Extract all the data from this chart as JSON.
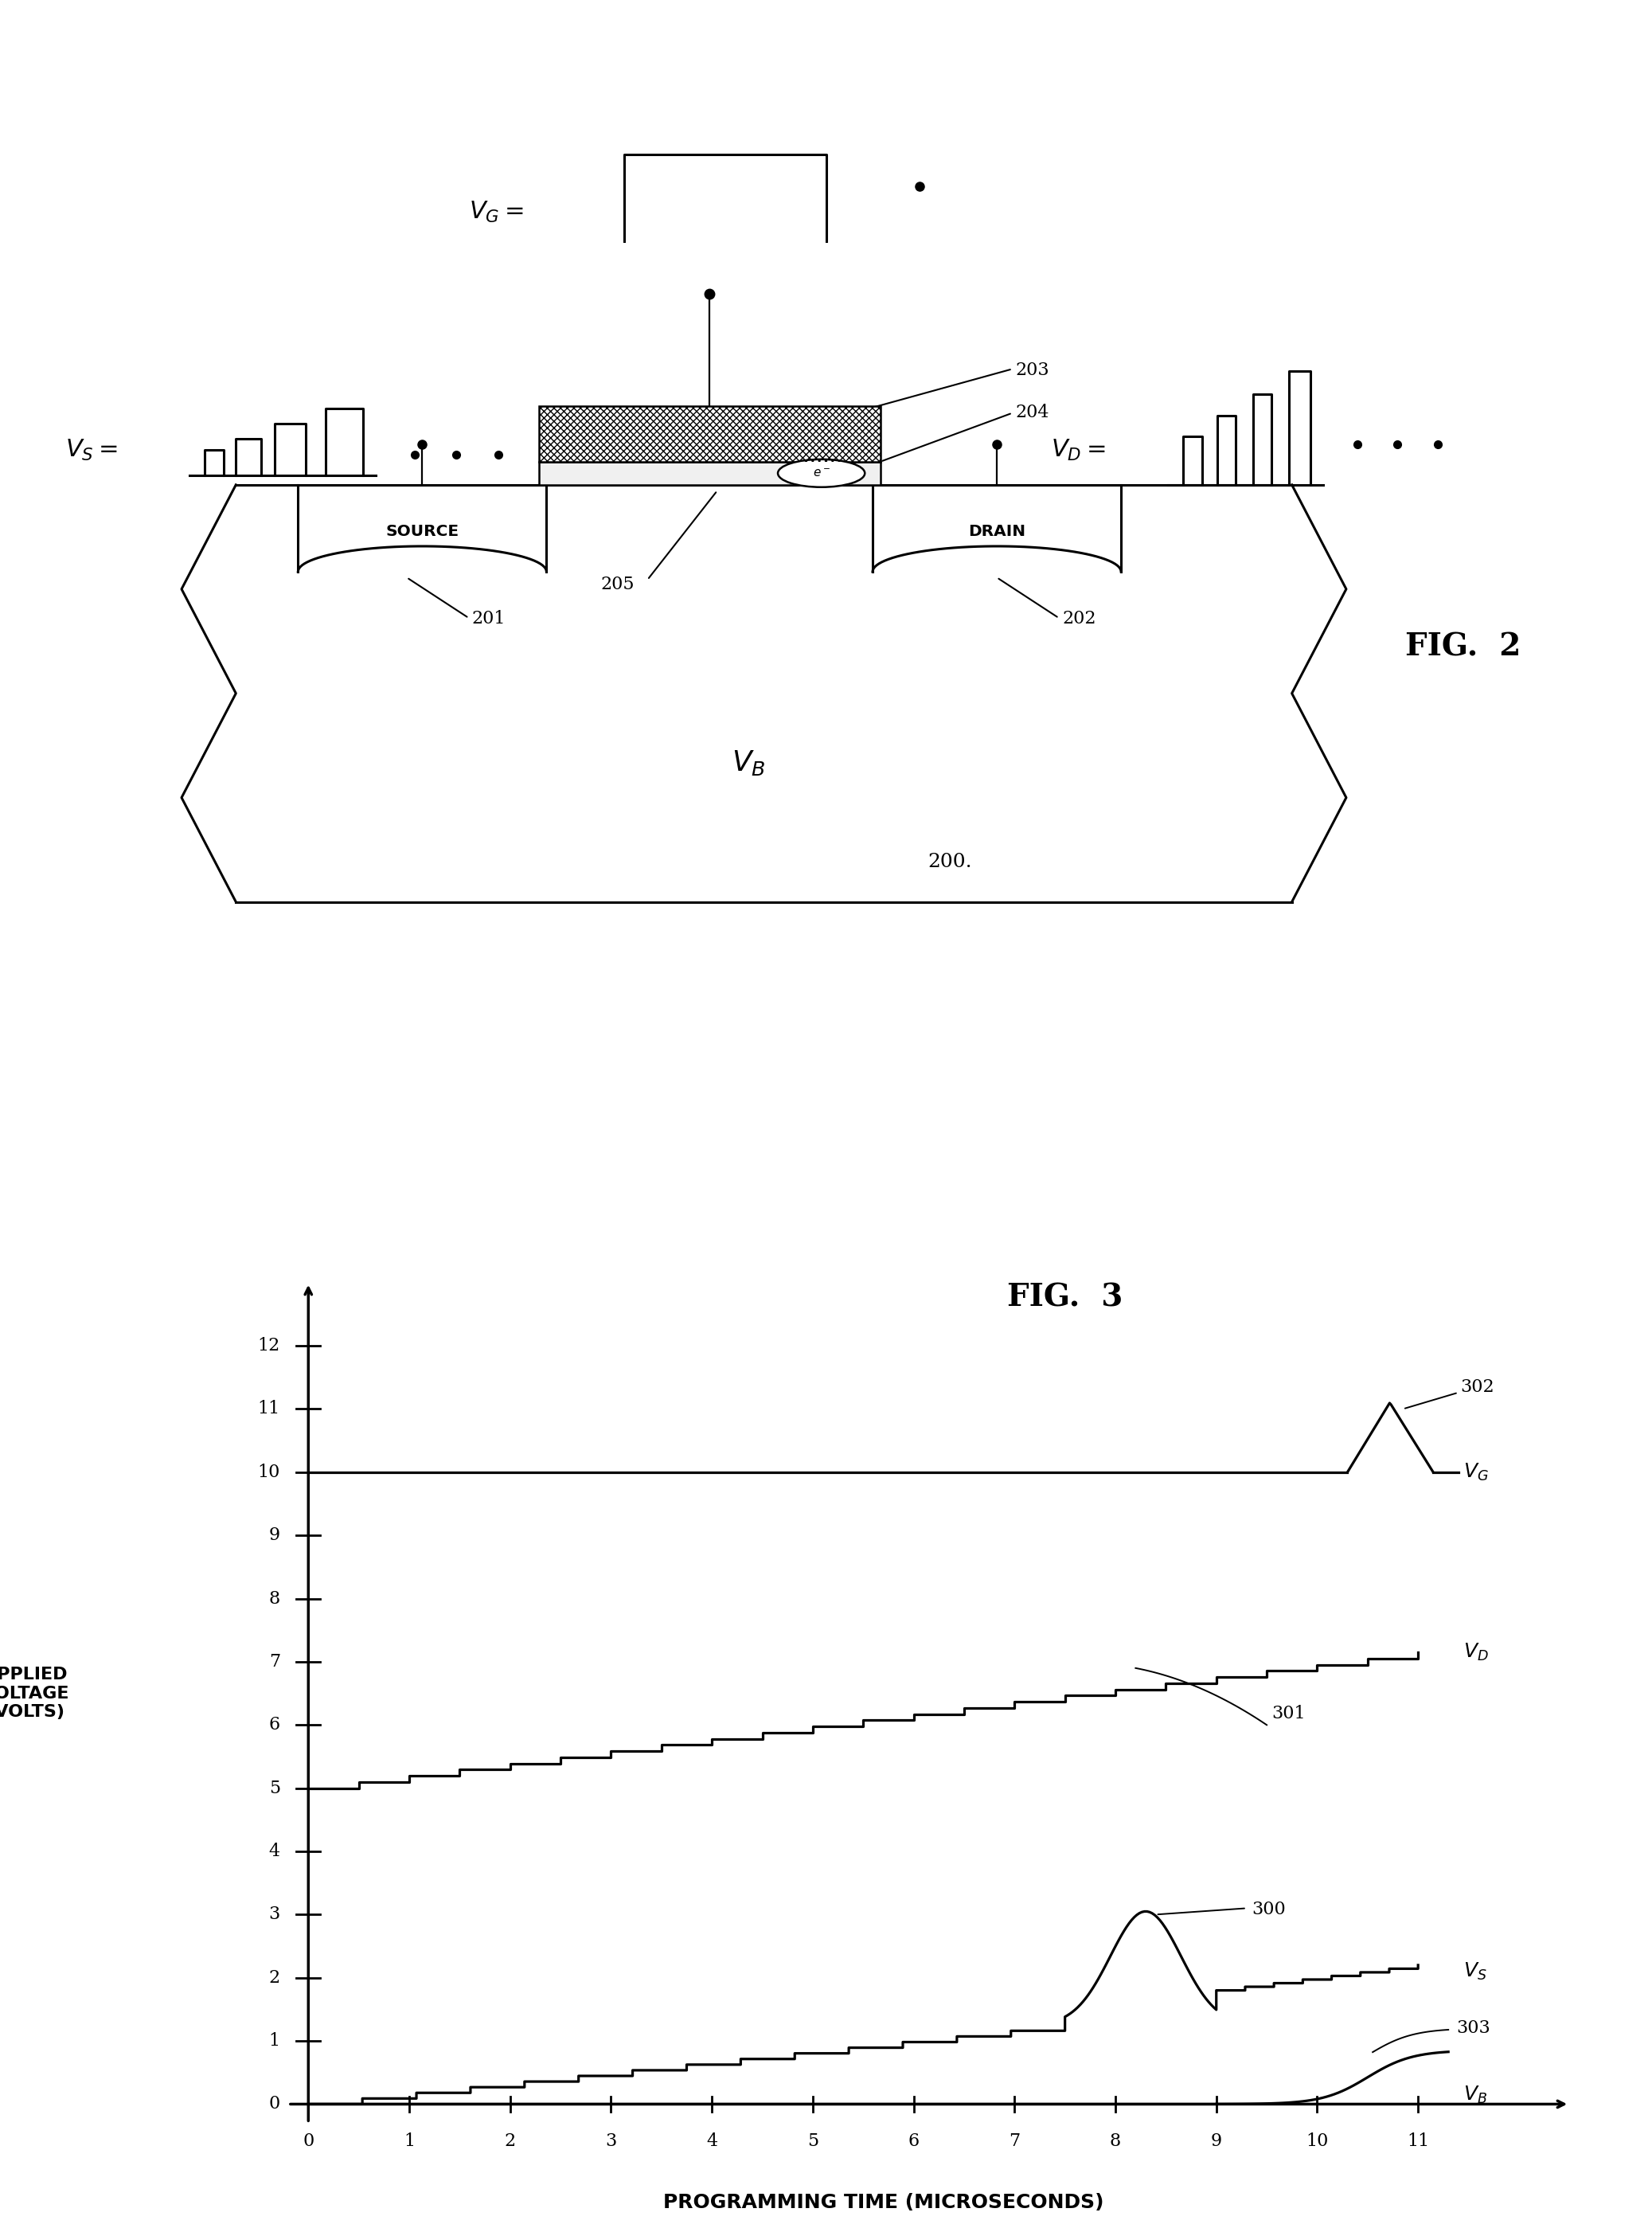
{
  "fig_width": 20.75,
  "fig_height": 27.98,
  "bg_color": "#ffffff",
  "fig2_title": "FIG.  2",
  "fig3_title": "FIG.  3",
  "source_label": "SOURCE",
  "drain_label": "DRAIN",
  "VB_label": "V_B",
  "ref200": "200.",
  "ref201": "201",
  "ref202": "202",
  "ref203": "203",
  "ref204": "204",
  "ref205": "205",
  "ref300": "300",
  "ref301": "301",
  "ref302": "302",
  "ref303": "303",
  "xlabel": "PROGRAMMING TIME (MICROSECONDS)",
  "ylabel1": "APPLIED",
  "ylabel2": "VOLTAGE",
  "ylabel3": "(VOLTS)"
}
